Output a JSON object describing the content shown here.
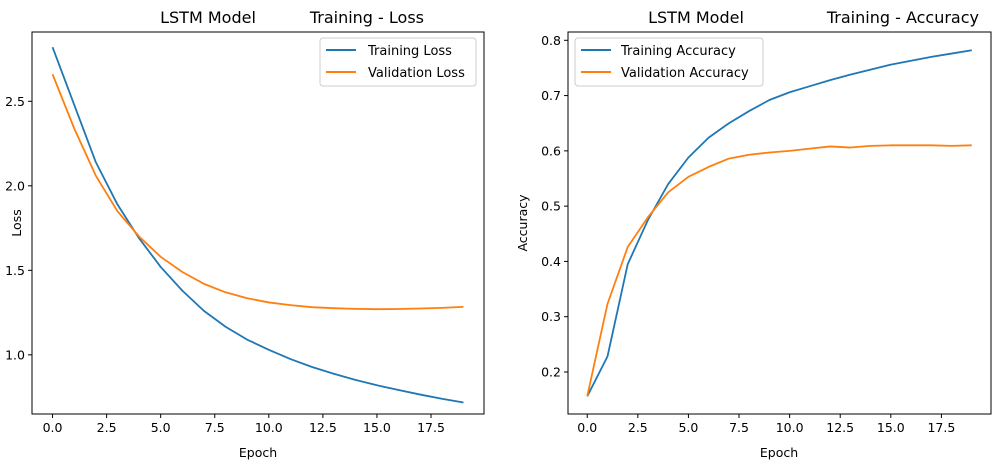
{
  "chart_data": [
    {
      "type": "line",
      "title_left": "LSTM Model",
      "title_right": "Training - Loss",
      "xlabel": "Epoch",
      "ylabel": "Loss",
      "xlim": [
        -0.95,
        19.95
      ],
      "ylim": [
        0.65,
        2.91
      ],
      "xticks": [
        0,
        2.5,
        5,
        7.5,
        10,
        12.5,
        15,
        17.5
      ],
      "xtick_labels": [
        "0.0",
        "2.5",
        "5.0",
        "7.5",
        "10.0",
        "12.5",
        "15.0",
        "17.5"
      ],
      "yticks": [
        1.0,
        1.5,
        2.0,
        2.5
      ],
      "ytick_labels": [
        "1.0",
        "1.5",
        "2.0",
        "2.5"
      ],
      "grid": false,
      "legend_position": "top-right",
      "x": [
        0,
        1,
        2,
        3,
        4,
        5,
        6,
        7,
        8,
        9,
        10,
        11,
        12,
        13,
        14,
        15,
        16,
        17,
        18,
        19
      ],
      "series": [
        {
          "name": "Training Loss",
          "color": "#1f77b4",
          "values": [
            2.82,
            2.48,
            2.14,
            1.89,
            1.69,
            1.52,
            1.38,
            1.26,
            1.166,
            1.09,
            1.03,
            0.975,
            0.928,
            0.888,
            0.852,
            0.82,
            0.792,
            0.765,
            0.74,
            0.718
          ]
        },
        {
          "name": "Validation Loss",
          "color": "#ff7f0e",
          "values": [
            2.66,
            2.34,
            2.06,
            1.85,
            1.7,
            1.58,
            1.49,
            1.42,
            1.37,
            1.335,
            1.31,
            1.294,
            1.282,
            1.276,
            1.272,
            1.27,
            1.271,
            1.274,
            1.278,
            1.284
          ]
        }
      ]
    },
    {
      "type": "line",
      "title_left": "LSTM Model",
      "title_right": "Training - Accuracy",
      "xlabel": "Epoch",
      "ylabel": "Accuracy",
      "xlim": [
        -0.95,
        19.95
      ],
      "ylim": [
        0.124,
        0.815
      ],
      "xticks": [
        0,
        2.5,
        5,
        7.5,
        10,
        12.5,
        15,
        17.5
      ],
      "xtick_labels": [
        "0.0",
        "2.5",
        "5.0",
        "7.5",
        "10.0",
        "12.5",
        "15.0",
        "17.5"
      ],
      "yticks": [
        0.2,
        0.3,
        0.4,
        0.5,
        0.6,
        0.7,
        0.8
      ],
      "ytick_labels": [
        "0.2",
        "0.3",
        "0.4",
        "0.5",
        "0.6",
        "0.7",
        "0.8"
      ],
      "grid": false,
      "legend_position": "top-left",
      "x": [
        0,
        1,
        2,
        3,
        4,
        5,
        6,
        7,
        8,
        9,
        10,
        11,
        12,
        13,
        14,
        15,
        16,
        17,
        18,
        19
      ],
      "series": [
        {
          "name": "Training Accuracy",
          "color": "#1f77b4",
          "values": [
            0.156,
            0.228,
            0.395,
            0.475,
            0.54,
            0.588,
            0.624,
            0.65,
            0.672,
            0.692,
            0.706,
            0.717,
            0.728,
            0.738,
            0.747,
            0.756,
            0.763,
            0.77,
            0.776,
            0.782
          ]
        },
        {
          "name": "Validation Accuracy",
          "color": "#ff7f0e",
          "values": [
            0.156,
            0.323,
            0.426,
            0.48,
            0.525,
            0.553,
            0.571,
            0.586,
            0.593,
            0.597,
            0.6,
            0.604,
            0.608,
            0.606,
            0.609,
            0.61,
            0.61,
            0.61,
            0.609,
            0.61
          ]
        }
      ]
    }
  ]
}
